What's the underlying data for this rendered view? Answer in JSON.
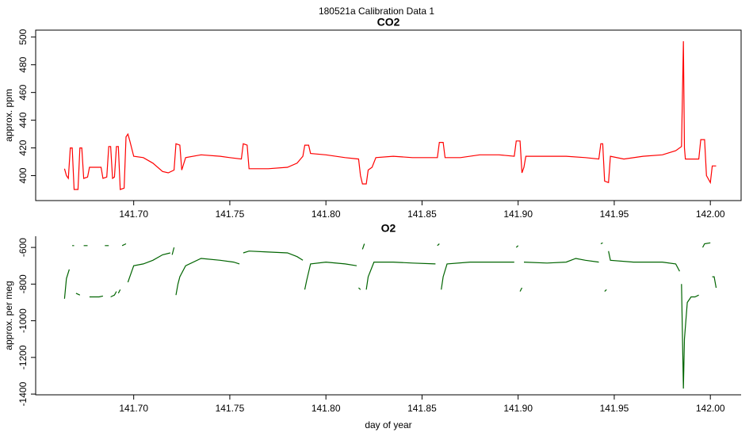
{
  "title": "180521a   Calibration Data 1",
  "chart_data": [
    {
      "type": "line",
      "title": "CO2",
      "ylabel": "approx. ppm",
      "color": "#ff0000",
      "xlim": [
        141.649,
        142.016
      ],
      "ylim": [
        382,
        505
      ],
      "xticks": [
        {
          "value": 141.7,
          "label": "141.70"
        },
        {
          "value": 141.75,
          "label": "141.75"
        },
        {
          "value": 141.8,
          "label": "141.80"
        },
        {
          "value": 141.85,
          "label": "141.85"
        },
        {
          "value": 141.9,
          "label": "141.90"
        },
        {
          "value": 141.95,
          "label": "141.95"
        },
        {
          "value": 142.0,
          "label": "142.00"
        }
      ],
      "yticks": [
        400,
        420,
        440,
        460,
        480,
        500
      ],
      "x": [
        141.664,
        141.665,
        141.666,
        141.667,
        141.668,
        141.669,
        141.671,
        141.672,
        141.673,
        141.674,
        141.676,
        141.677,
        141.683,
        141.684,
        141.686,
        141.687,
        141.688,
        141.689,
        141.69,
        141.691,
        141.692,
        141.693,
        141.695,
        141.696,
        141.697,
        141.698,
        141.7,
        141.705,
        141.71,
        141.715,
        141.718,
        141.721,
        141.722,
        141.724,
        141.725,
        141.727,
        141.735,
        141.745,
        141.75,
        141.756,
        141.757,
        141.759,
        141.76,
        141.77,
        141.78,
        141.785,
        141.788,
        141.789,
        141.791,
        141.792,
        141.8,
        141.81,
        141.817,
        141.818,
        141.819,
        141.821,
        141.822,
        141.824,
        141.826,
        141.835,
        141.845,
        141.858,
        141.859,
        141.861,
        141.862,
        141.87,
        141.88,
        141.89,
        141.898,
        141.899,
        141.901,
        141.902,
        141.903,
        141.904,
        141.915,
        141.925,
        141.935,
        141.942,
        141.943,
        141.944,
        141.945,
        141.947,
        141.948,
        141.955,
        141.965,
        141.975,
        141.982,
        141.985,
        141.986,
        141.9865,
        141.987,
        141.994,
        141.995,
        141.997,
        141.998,
        142.0,
        142.001,
        142.003
      ],
      "values": [
        405,
        400,
        398,
        420,
        420,
        390,
        390,
        420,
        420,
        398,
        399,
        406,
        406,
        398,
        399,
        421,
        421,
        398,
        399,
        421,
        421,
        390,
        391,
        428,
        430,
        425,
        414,
        413,
        409,
        403,
        402,
        404,
        423,
        422,
        404,
        413,
        415,
        414,
        413,
        412,
        423,
        422,
        405,
        405,
        406,
        409,
        414,
        422,
        422,
        416,
        415,
        413,
        412,
        400,
        394,
        394,
        404,
        406,
        413,
        414,
        413,
        413,
        424,
        424,
        413,
        413,
        415,
        415,
        414,
        425,
        425,
        402,
        406,
        414,
        414,
        414,
        413,
        412,
        423,
        423,
        396,
        395,
        414,
        412,
        414,
        415,
        418,
        421,
        497,
        420,
        412,
        412,
        426,
        426,
        400,
        395,
        407,
        407
      ]
    },
    {
      "type": "line",
      "title": "O2",
      "ylabel": "approx. per meg",
      "xlabel": "day of year",
      "color": "#006400",
      "xlim": [
        141.649,
        142.016
      ],
      "ylim": [
        -1404,
        -539
      ],
      "xticks": [
        {
          "value": 141.7,
          "label": "141.70"
        },
        {
          "value": 141.75,
          "label": "141.75"
        },
        {
          "value": 141.8,
          "label": "141.80"
        },
        {
          "value": 141.85,
          "label": "141.85"
        },
        {
          "value": 141.9,
          "label": "141.90"
        },
        {
          "value": 141.95,
          "label": "141.95"
        },
        {
          "value": 142.0,
          "label": "142.00"
        }
      ],
      "yticks": [
        -1400,
        -1200,
        -1000,
        -800,
        -600
      ],
      "x": [
        141.664,
        141.665,
        141.6665,
        null,
        141.668,
        141.669,
        null,
        141.67,
        141.672,
        null,
        141.674,
        141.676,
        null,
        141.677,
        141.682,
        141.684,
        null,
        141.685,
        141.687,
        null,
        141.688,
        141.69,
        141.691,
        null,
        141.692,
        141.693,
        null,
        141.694,
        141.696,
        null,
        141.697,
        141.698,
        141.7,
        141.705,
        141.71,
        141.715,
        141.719,
        null,
        141.72,
        141.721,
        null,
        141.722,
        141.723,
        141.724,
        141.727,
        141.735,
        141.745,
        141.752,
        141.755,
        null,
        141.757,
        141.76,
        141.77,
        141.78,
        141.785,
        141.788,
        null,
        141.789,
        141.79,
        141.792,
        141.8,
        141.81,
        141.816,
        null,
        141.817,
        141.818,
        null,
        141.819,
        141.82,
        null,
        141.821,
        141.822,
        141.825,
        141.835,
        141.845,
        141.857,
        null,
        141.858,
        141.859,
        null,
        141.86,
        141.861,
        141.863,
        141.875,
        141.89,
        141.898,
        null,
        141.899,
        141.9,
        null,
        141.901,
        141.902,
        null,
        141.903,
        141.915,
        141.925,
        141.93,
        141.935,
        141.942,
        null,
        141.943,
        141.944,
        null,
        141.945,
        141.946,
        null,
        141.947,
        141.948,
        141.96,
        141.975,
        141.982,
        141.984,
        null,
        141.985,
        141.986,
        141.9865,
        141.988,
        141.99,
        141.992,
        141.994,
        null,
        141.996,
        141.997,
        142.0,
        null,
        142.001,
        142.002,
        142.003
      ],
      "values": [
        -880,
        -770,
        -720,
        null,
        -590,
        -590,
        null,
        -850,
        -860,
        null,
        -590,
        -590,
        null,
        -870,
        -870,
        -865,
        null,
        -590,
        -590,
        null,
        -870,
        -860,
        -840,
        null,
        -850,
        -830,
        null,
        -590,
        -580,
        null,
        -790,
        -760,
        -700,
        -690,
        -670,
        -640,
        -630,
        null,
        -640,
        -600,
        null,
        -860,
        -800,
        -760,
        -700,
        -660,
        -670,
        -680,
        -690,
        null,
        -630,
        -620,
        -625,
        -630,
        -650,
        -670,
        null,
        -830,
        -780,
        -690,
        -680,
        -690,
        -700,
        null,
        -820,
        -830,
        null,
        -610,
        -580,
        null,
        -830,
        -760,
        -680,
        -680,
        -685,
        -690,
        null,
        -590,
        -580,
        null,
        -830,
        -760,
        -690,
        -680,
        -680,
        -680,
        null,
        -600,
        -590,
        null,
        -840,
        -820,
        null,
        -680,
        -685,
        -680,
        -660,
        -670,
        -680,
        null,
        -580,
        -575,
        null,
        -840,
        -830,
        null,
        -620,
        -670,
        -680,
        -680,
        -690,
        -730,
        null,
        -800,
        -1370,
        -1100,
        -900,
        -870,
        -870,
        -860,
        null,
        -600,
        -580,
        -575,
        null,
        -760,
        -760,
        -820
      ]
    }
  ]
}
